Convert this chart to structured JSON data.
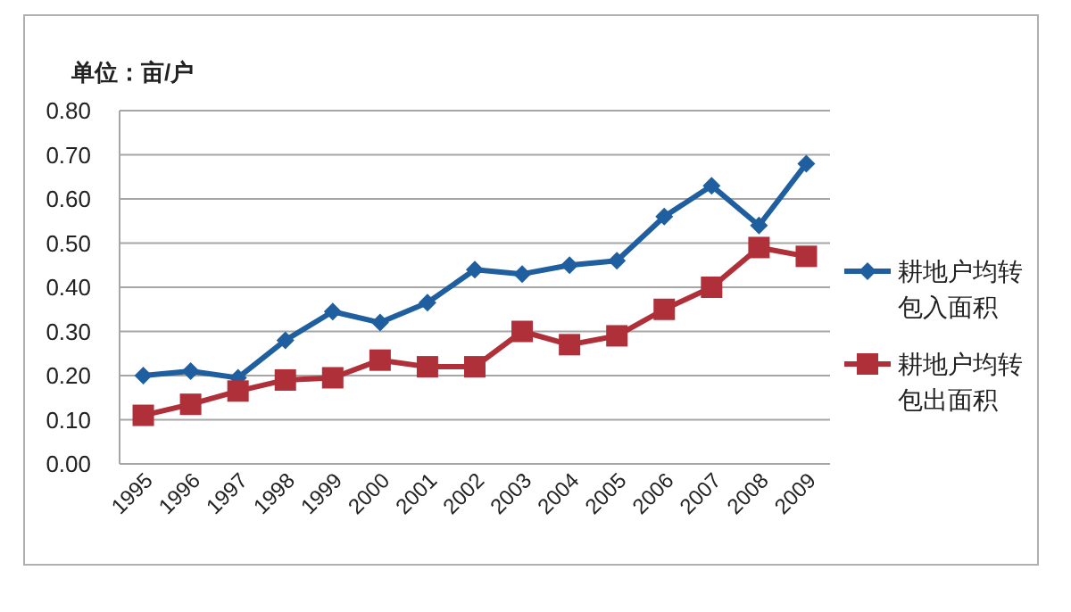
{
  "chart_data": {
    "type": "line",
    "title": "单位：亩/户",
    "categories": [
      "1995",
      "1996",
      "1997",
      "1998",
      "1999",
      "2000",
      "2001",
      "2002",
      "2003",
      "2004",
      "2005",
      "2006",
      "2007",
      "2008",
      "2009"
    ],
    "series": [
      {
        "name": "耕地户均转包入面积",
        "color": "#1f5fa0",
        "marker": "diamond",
        "values": [
          0.2,
          0.21,
          0.195,
          0.28,
          0.345,
          0.32,
          0.365,
          0.44,
          0.43,
          0.45,
          0.46,
          0.56,
          0.63,
          0.54,
          0.68
        ]
      },
      {
        "name": "耕地户均转包出面积",
        "color": "#b0303a",
        "marker": "square",
        "values": [
          0.11,
          0.135,
          0.165,
          0.19,
          0.195,
          0.235,
          0.22,
          0.22,
          0.3,
          0.27,
          0.29,
          0.35,
          0.4,
          0.49,
          0.47
        ]
      }
    ],
    "ylim": [
      0,
      0.8
    ],
    "yticks": [
      {
        "value": 0,
        "label": "0.00"
      },
      {
        "value": 0.1,
        "label": "0.10"
      },
      {
        "value": 0.2,
        "label": "0.20"
      },
      {
        "value": 0.3,
        "label": "0.30"
      },
      {
        "value": 0.4,
        "label": "0.40"
      },
      {
        "value": 0.5,
        "label": "0.50"
      },
      {
        "value": 0.6,
        "label": "0.60"
      },
      {
        "value": 0.7,
        "label": "0.70"
      },
      {
        "value": 0.8,
        "label": "0.80"
      }
    ],
    "grid": "y",
    "legend": "right",
    "line_style": "solid"
  }
}
